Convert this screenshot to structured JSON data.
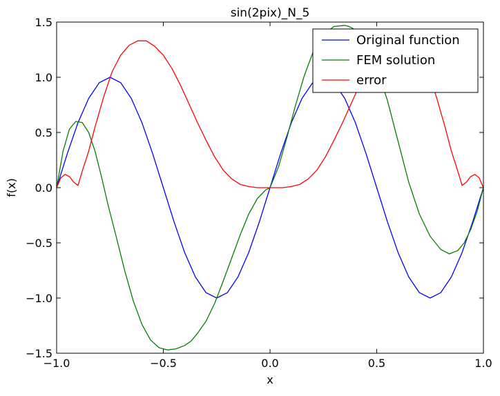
{
  "chart_data": {
    "type": "line",
    "title": "sin(2pix)_N_5",
    "xlabel": "x",
    "ylabel": "f(x)",
    "xlim": [
      -1.0,
      1.0
    ],
    "ylim": [
      -1.5,
      1.5
    ],
    "xticks": [
      -1.0,
      -0.5,
      0.0,
      0.5,
      1.0
    ],
    "xtick_labels": [
      "−1.0",
      "−0.5",
      "0.0",
      "0.5",
      "1.0"
    ],
    "yticks": [
      -1.5,
      -1.0,
      -0.5,
      0.0,
      0.5,
      1.0,
      1.5
    ],
    "ytick_labels": [
      "−1.5",
      "−1.0",
      "−0.5",
      "0.0",
      "0.5",
      "1.0",
      "1.5"
    ],
    "grid": false,
    "legend_position": "top-right",
    "series": [
      {
        "name": "Original function",
        "color": "#0000ff",
        "x": [
          -1.0,
          -0.95,
          -0.9,
          -0.85,
          -0.8,
          -0.75,
          -0.7,
          -0.65,
          -0.6,
          -0.55,
          -0.5,
          -0.45,
          -0.4,
          -0.35,
          -0.3,
          -0.25,
          -0.2,
          -0.15,
          -0.1,
          -0.05,
          0.0,
          0.05,
          0.1,
          0.15,
          0.2,
          0.25,
          0.3,
          0.35,
          0.4,
          0.45,
          0.5,
          0.55,
          0.6,
          0.65,
          0.7,
          0.75,
          0.8,
          0.85,
          0.9,
          0.95,
          1.0
        ],
        "y": [
          0.0,
          0.309,
          0.588,
          0.809,
          0.951,
          1.0,
          0.951,
          0.809,
          0.588,
          0.309,
          0.0,
          -0.309,
          -0.588,
          -0.809,
          -0.951,
          -1.0,
          -0.951,
          -0.809,
          -0.588,
          -0.309,
          0.0,
          0.309,
          0.588,
          0.809,
          0.951,
          1.0,
          0.951,
          0.809,
          0.588,
          0.309,
          0.0,
          -0.309,
          -0.588,
          -0.809,
          -0.951,
          -1.0,
          -0.951,
          -0.809,
          -0.588,
          -0.309,
          0.0
        ]
      },
      {
        "name": "FEM solution",
        "color": "#008000",
        "x": [
          -1.0,
          -0.97,
          -0.94,
          -0.91,
          -0.88,
          -0.85,
          -0.82,
          -0.79,
          -0.76,
          -0.72,
          -0.68,
          -0.64,
          -0.6,
          -0.56,
          -0.52,
          -0.48,
          -0.44,
          -0.4,
          -0.37,
          -0.34,
          -0.3,
          -0.26,
          -0.22,
          -0.18,
          -0.14,
          -0.1,
          -0.06,
          -0.02,
          0.0,
          0.04,
          0.08,
          0.12,
          0.16,
          0.2,
          0.25,
          0.3,
          0.35,
          0.37,
          0.4,
          0.45,
          0.5,
          0.55,
          0.6,
          0.65,
          0.7,
          0.75,
          0.8,
          0.84,
          0.88,
          0.91,
          0.94,
          0.97,
          1.0
        ],
        "y": [
          0.0,
          0.33,
          0.53,
          0.6,
          0.59,
          0.5,
          0.33,
          0.1,
          -0.15,
          -0.45,
          -0.76,
          -1.03,
          -1.24,
          -1.38,
          -1.45,
          -1.47,
          -1.46,
          -1.43,
          -1.39,
          -1.32,
          -1.21,
          -1.05,
          -0.85,
          -0.64,
          -0.43,
          -0.24,
          -0.1,
          -0.02,
          0.0,
          0.19,
          0.46,
          0.75,
          1.01,
          1.22,
          1.39,
          1.46,
          1.47,
          1.46,
          1.43,
          1.3,
          1.09,
          0.79,
          0.42,
          0.05,
          -0.24,
          -0.44,
          -0.56,
          -0.6,
          -0.57,
          -0.5,
          -0.38,
          -0.22,
          0.0
        ]
      },
      {
        "name": "error",
        "color": "#ff0000",
        "x": [
          -1.0,
          -0.98,
          -0.96,
          -0.94,
          -0.92,
          -0.9,
          -0.88,
          -0.85,
          -0.82,
          -0.78,
          -0.74,
          -0.7,
          -0.66,
          -0.62,
          -0.58,
          -0.54,
          -0.5,
          -0.46,
          -0.42,
          -0.38,
          -0.34,
          -0.3,
          -0.26,
          -0.22,
          -0.18,
          -0.14,
          -0.1,
          -0.06,
          -0.02,
          0.0,
          0.02,
          0.06,
          0.1,
          0.14,
          0.18,
          0.22,
          0.26,
          0.3,
          0.34,
          0.38,
          0.42,
          0.46,
          0.5,
          0.54,
          0.58,
          0.62,
          0.66,
          0.7,
          0.74,
          0.78,
          0.82,
          0.85,
          0.88,
          0.9,
          0.92,
          0.94,
          0.96,
          0.98,
          1.0
        ],
        "y": [
          0.0,
          0.09,
          0.12,
          0.1,
          0.05,
          0.02,
          0.15,
          0.33,
          0.55,
          0.82,
          1.05,
          1.2,
          1.29,
          1.33,
          1.33,
          1.28,
          1.2,
          1.08,
          0.93,
          0.76,
          0.59,
          0.43,
          0.28,
          0.16,
          0.08,
          0.03,
          0.01,
          0.0,
          0.0,
          0.0,
          0.0,
          0.0,
          0.01,
          0.03,
          0.08,
          0.16,
          0.28,
          0.43,
          0.59,
          0.76,
          0.93,
          1.08,
          1.2,
          1.28,
          1.33,
          1.33,
          1.29,
          1.2,
          1.05,
          0.82,
          0.55,
          0.33,
          0.15,
          0.02,
          0.05,
          0.1,
          0.12,
          0.09,
          0.0
        ]
      }
    ]
  }
}
